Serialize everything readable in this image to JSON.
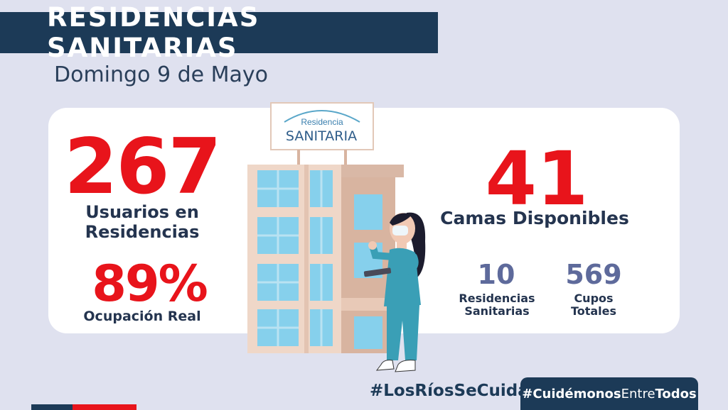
{
  "header": {
    "title": "RESIDENCIAS SANITARIAS",
    "date": "Domingo 9 de Mayo"
  },
  "stats": {
    "usuarios": {
      "value": "267",
      "label_line1": "Usuarios en",
      "label_line2": "Residencias"
    },
    "ocupacion": {
      "value": "89%",
      "label": "Ocupación Real"
    },
    "camas": {
      "value": "41",
      "label": "Camas Disponibles"
    },
    "residencias": {
      "value": "10",
      "label_line1": "Residencias",
      "label_line2": "Sanitarias"
    },
    "cupos": {
      "value": "569",
      "label_line1": "Cupos",
      "label_line2": "Totales"
    }
  },
  "building_sign": {
    "line1": "Residencia",
    "line2": "SANITARIA"
  },
  "footer": {
    "hashtag_left": "#LosRíosSeCuida",
    "hashtag_right_a": "#Cuidémonos",
    "hashtag_right_b": "Entre",
    "hashtag_right_c": "Todos"
  },
  "colors": {
    "navy": "#1c3a57",
    "red": "#e8141b",
    "slate": "#5e6a9b",
    "background": "#dfe1ef"
  },
  "icons": [
    "building-illustration",
    "nurse-illustration"
  ]
}
